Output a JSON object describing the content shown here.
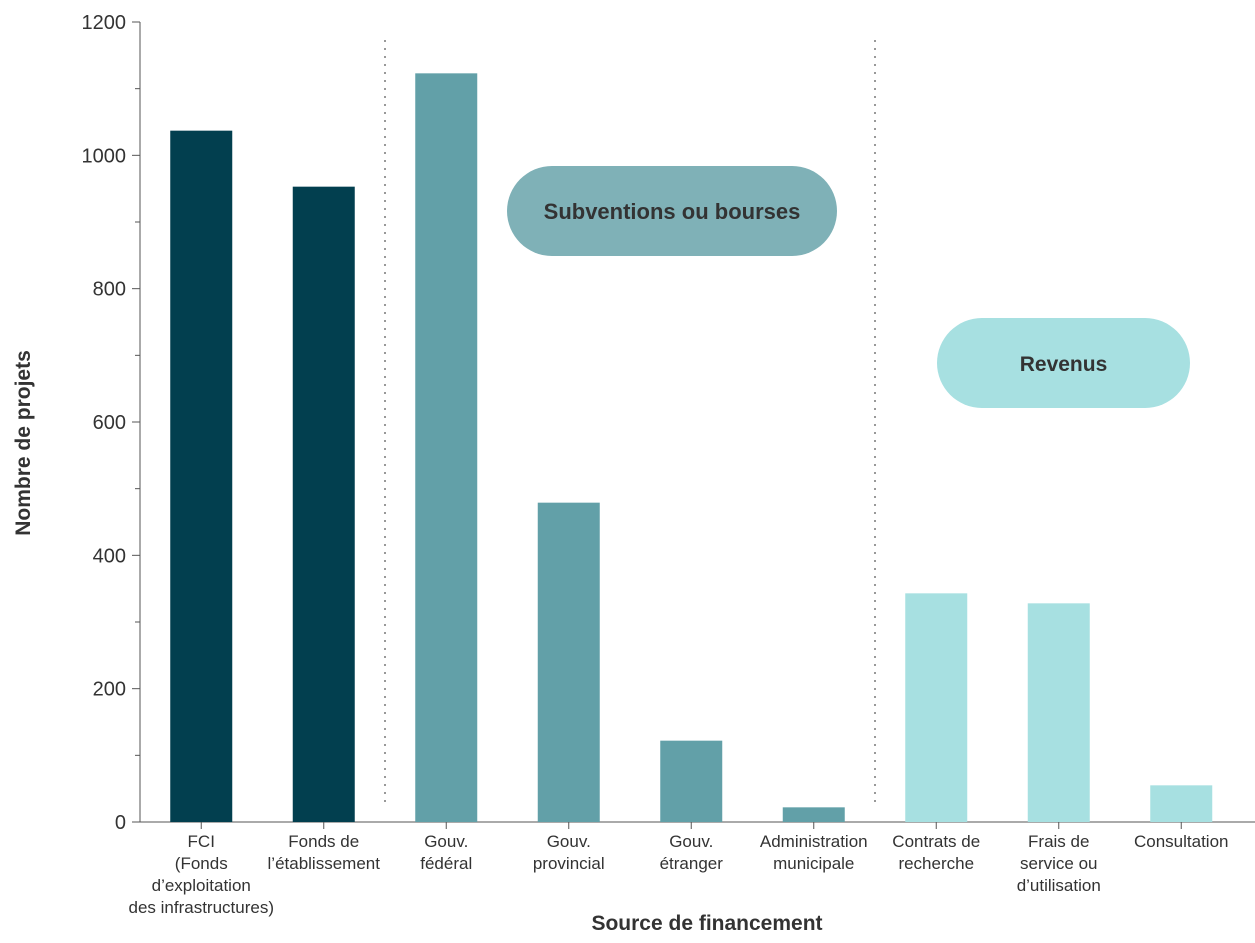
{
  "chart_data": {
    "type": "bar",
    "title": "",
    "xlabel": "Source de financement",
    "ylabel": "Nombre de projets",
    "ylim": [
      0,
      1200
    ],
    "yticks": [
      0,
      200,
      400,
      600,
      800,
      1000,
      1200
    ],
    "grid": false,
    "categories": [
      [
        "FCI",
        "(Fonds",
        "d’exploitation",
        "des infrastructures)"
      ],
      [
        "Fonds de",
        "l’établissement"
      ],
      [
        "Gouv.",
        "fédéral"
      ],
      [
        "Gouv.",
        "provincial"
      ],
      [
        "Gouv.",
        "étranger"
      ],
      [
        "Administration",
        "municipale"
      ],
      [
        "Contrats de",
        "recherche"
      ],
      [
        "Frais de",
        "service ou",
        "d’utilisation"
      ],
      [
        "Consultation"
      ]
    ],
    "values": [
      1037,
      953,
      1123,
      479,
      122,
      22,
      343,
      328,
      55
    ],
    "groups": [
      {
        "label": "",
        "color": "#023f4f",
        "indices": [
          0,
          1
        ]
      },
      {
        "label": "Subventions ou bourses",
        "color": "#62a0a8",
        "pill_color": "#7fb1b7",
        "indices": [
          2,
          3,
          4,
          5
        ]
      },
      {
        "label": "Revenus",
        "color": "#a7e0e1",
        "pill_color": "#a7e0e1",
        "indices": [
          6,
          7,
          8
        ]
      }
    ]
  }
}
